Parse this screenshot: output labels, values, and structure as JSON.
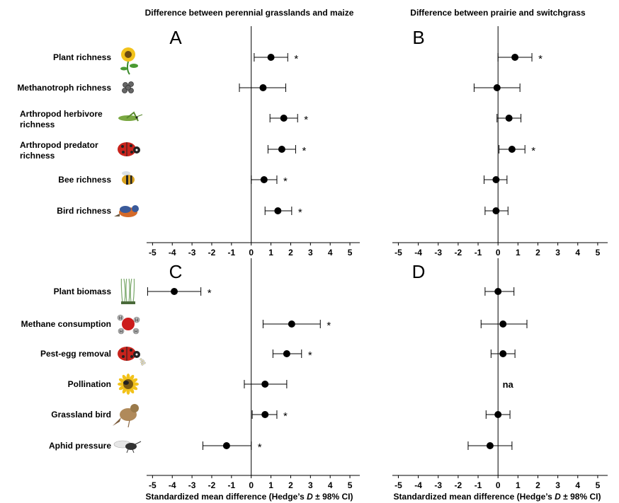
{
  "column_titles": {
    "left": "Difference between perennial grasslands and maize",
    "right": "Difference between prairie and switchgrass"
  },
  "axis_title_parts": {
    "prefix": "Standardized mean difference (Hedge’s ",
    "italic": "D",
    "suffix": " ± 98% CI)"
  },
  "xticks": [
    -5,
    -4,
    -3,
    -2,
    -1,
    0,
    1,
    2,
    3,
    4,
    5
  ],
  "xlim": [
    -5.3,
    5.5
  ],
  "biodiversity_rows": [
    {
      "label_lines": [
        "Plant richness"
      ],
      "icon": "sunflower-icon"
    },
    {
      "label_lines": [
        "Methanotroph richness"
      ],
      "icon": "bacteria-icon"
    },
    {
      "label_lines": [
        "Arthropod herbivore",
        "richness"
      ],
      "icon": "grasshopper-icon"
    },
    {
      "label_lines": [
        "Arthropod predator",
        "richness"
      ],
      "icon": "ladybug-icon"
    },
    {
      "label_lines": [
        "Bee richness"
      ],
      "icon": "bee-icon"
    },
    {
      "label_lines": [
        "Bird richness"
      ],
      "icon": "bird-icon"
    }
  ],
  "service_rows": [
    {
      "label_lines": [
        "Plant biomass"
      ],
      "icon": "grass-icon"
    },
    {
      "label_lines": [
        "Methane consumption"
      ],
      "icon": "methane-molecule-icon"
    },
    {
      "label_lines": [
        "Pest-egg removal"
      ],
      "icon": "ladybug-eggs-icon"
    },
    {
      "label_lines": [
        "Pollination"
      ],
      "icon": "sunflower-bee-icon"
    },
    {
      "label_lines": [
        "Grassland bird"
      ],
      "icon": "sparrow-icon"
    },
    {
      "label_lines": [
        "Aphid pressure"
      ],
      "icon": "aphid-icon"
    }
  ],
  "chart_data": [
    {
      "panel": "A",
      "type": "scatter",
      "error_bars": true,
      "title": "Difference between perennial grasslands and maize",
      "xlabel": "",
      "xlim": [
        -5.3,
        5.5
      ],
      "categories": [
        "Plant richness",
        "Methanotroph richness",
        "Arthropod herbivore richness",
        "Arthropod predator richness",
        "Bee richness",
        "Bird richness"
      ],
      "values": [
        1.0,
        0.6,
        1.65,
        1.55,
        0.65,
        1.35
      ],
      "ci_low": [
        0.15,
        -0.6,
        0.95,
        0.85,
        0.0,
        0.7
      ],
      "ci_high": [
        1.85,
        1.75,
        2.35,
        2.25,
        1.3,
        2.05
      ],
      "significant": [
        true,
        false,
        true,
        true,
        true,
        true
      ]
    },
    {
      "panel": "B",
      "type": "scatter",
      "error_bars": true,
      "title": "Difference between prairie and switchgrass",
      "xlabel": "",
      "xlim": [
        -5.3,
        5.5
      ],
      "categories": [
        "Plant richness",
        "Methanotroph richness",
        "Arthropod herbivore richness",
        "Arthropod predator richness",
        "Bee richness",
        "Bird richness"
      ],
      "values": [
        0.85,
        -0.05,
        0.55,
        0.7,
        -0.1,
        -0.1
      ],
      "ci_low": [
        0.0,
        -1.2,
        -0.05,
        0.05,
        -0.7,
        -0.65
      ],
      "ci_high": [
        1.7,
        1.1,
        1.15,
        1.35,
        0.45,
        0.5
      ],
      "significant": [
        true,
        false,
        false,
        true,
        false,
        false
      ]
    },
    {
      "panel": "C",
      "type": "scatter",
      "error_bars": true,
      "title": "",
      "xlabel": "Standardized mean difference (Hedge’s D ± 98% CI)",
      "xlim": [
        -5.3,
        5.5
      ],
      "categories": [
        "Plant biomass",
        "Methane consumption",
        "Pest-egg removal",
        "Pollination",
        "Grassland bird",
        "Aphid pressure"
      ],
      "values": [
        -3.9,
        2.05,
        1.8,
        0.7,
        0.7,
        -1.25
      ],
      "ci_low": [
        -5.25,
        0.6,
        1.1,
        -0.35,
        0.05,
        -2.45
      ],
      "ci_high": [
        -2.55,
        3.5,
        2.55,
        1.8,
        1.3,
        0.0
      ],
      "significant": [
        true,
        true,
        true,
        false,
        true,
        true
      ]
    },
    {
      "panel": "D",
      "type": "scatter",
      "error_bars": true,
      "title": "",
      "xlabel": "Standardized mean difference (Hedge’s D ± 98% CI)",
      "xlim": [
        -5.3,
        5.5
      ],
      "categories": [
        "Plant biomass",
        "Methane consumption",
        "Pest-egg removal",
        "Pollination",
        "Grassland bird",
        "Aphid pressure"
      ],
      "values": [
        0.0,
        0.25,
        0.25,
        null,
        0.0,
        -0.4
      ],
      "ci_low": [
        -0.65,
        -0.85,
        -0.35,
        null,
        -0.6,
        -1.5
      ],
      "ci_high": [
        0.8,
        1.45,
        0.85,
        null,
        0.6,
        0.7
      ],
      "significant": [
        false,
        false,
        false,
        false,
        false,
        false
      ],
      "missing_label": "na"
    }
  ]
}
